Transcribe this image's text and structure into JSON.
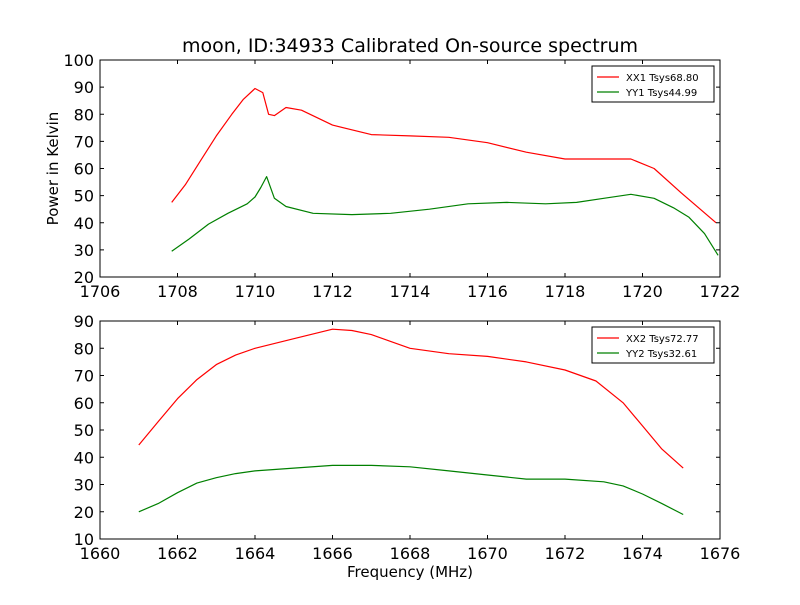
{
  "chart_data": [
    {
      "type": "line",
      "title": "moon, ID:34933 Calibrated On-source spectrum",
      "xlabel": "",
      "ylabel": "Power in Kelvin",
      "xlim": [
        1706,
        1722
      ],
      "ylim": [
        20,
        100
      ],
      "xticks": [
        "1706",
        "1708",
        "1710",
        "1712",
        "1714",
        "1716",
        "1718",
        "1720",
        "1722"
      ],
      "yticks": [
        "20",
        "30",
        "40",
        "50",
        "60",
        "70",
        "80",
        "90",
        "100"
      ],
      "legend_position": "top-right",
      "series": [
        {
          "name": "XX1 Tsys68.80",
          "color": "#ff0000",
          "x": [
            1707.85,
            1708.2,
            1708.6,
            1709.0,
            1709.4,
            1709.7,
            1710.0,
            1710.2,
            1710.35,
            1710.5,
            1710.8,
            1711.2,
            1712.0,
            1713.0,
            1714.0,
            1715.0,
            1716.0,
            1717.0,
            1718.0,
            1719.0,
            1719.7,
            1720.3,
            1721.0,
            1721.9
          ],
          "y": [
            47.5,
            54,
            63,
            72,
            80,
            85.5,
            89.5,
            88,
            80,
            79.5,
            82.5,
            81.5,
            76,
            72.5,
            72,
            71.5,
            69.5,
            66,
            63.5,
            63.5,
            63.5,
            60,
            51,
            40
          ]
        },
        {
          "name": "YY1 Tsys44.99",
          "color": "#008000",
          "x": [
            1707.85,
            1708.3,
            1708.8,
            1709.3,
            1709.8,
            1710.0,
            1710.15,
            1710.3,
            1710.5,
            1710.8,
            1711.5,
            1712.5,
            1713.5,
            1714.5,
            1715.5,
            1716.5,
            1717.5,
            1718.3,
            1719.0,
            1719.7,
            1720.3,
            1720.8,
            1721.2,
            1721.6,
            1721.95
          ],
          "y": [
            29.5,
            34,
            39.5,
            43.5,
            47,
            49.5,
            53,
            57,
            49,
            46,
            43.5,
            43,
            43.5,
            45,
            47,
            47.5,
            47,
            47.5,
            49,
            50.5,
            49,
            45.5,
            42,
            36,
            28
          ]
        }
      ]
    },
    {
      "type": "line",
      "title": "",
      "xlabel": "Frequency (MHz)",
      "ylabel": "",
      "xlim": [
        1660,
        1676
      ],
      "ylim": [
        10,
        90
      ],
      "xticks": [
        "1660",
        "1662",
        "1664",
        "1666",
        "1668",
        "1670",
        "1672",
        "1674",
        "1676"
      ],
      "yticks": [
        "10",
        "20",
        "30",
        "40",
        "50",
        "60",
        "70",
        "80",
        "90"
      ],
      "legend_position": "top-right",
      "series": [
        {
          "name": "XX2 Tsys72.77",
          "color": "#ff0000",
          "x": [
            1661.0,
            1661.5,
            1662.0,
            1662.5,
            1663.0,
            1663.5,
            1664.0,
            1665.0,
            1666.0,
            1666.5,
            1667.0,
            1667.5,
            1668.0,
            1669.0,
            1670.0,
            1671.0,
            1672.0,
            1672.8,
            1673.5,
            1674.0,
            1674.5,
            1675.05
          ],
          "y": [
            44.5,
            53,
            61.5,
            68.5,
            74,
            77.5,
            80,
            83.5,
            87,
            86.5,
            85,
            82.5,
            80,
            78,
            77,
            75,
            72,
            68,
            60,
            51.5,
            43,
            36
          ]
        },
        {
          "name": "YY2 Tsys32.61",
          "color": "#008000",
          "x": [
            1661.0,
            1661.5,
            1662.0,
            1662.5,
            1663.0,
            1663.5,
            1664.0,
            1665.0,
            1666.0,
            1667.0,
            1668.0,
            1669.0,
            1670.0,
            1671.0,
            1672.0,
            1673.0,
            1673.5,
            1674.0,
            1674.5,
            1675.05
          ],
          "y": [
            20,
            23,
            27,
            30.5,
            32.5,
            34,
            35,
            36,
            37,
            37,
            36.5,
            35,
            33.5,
            32,
            32,
            31,
            29.5,
            26.5,
            23,
            19
          ]
        }
      ]
    }
  ]
}
